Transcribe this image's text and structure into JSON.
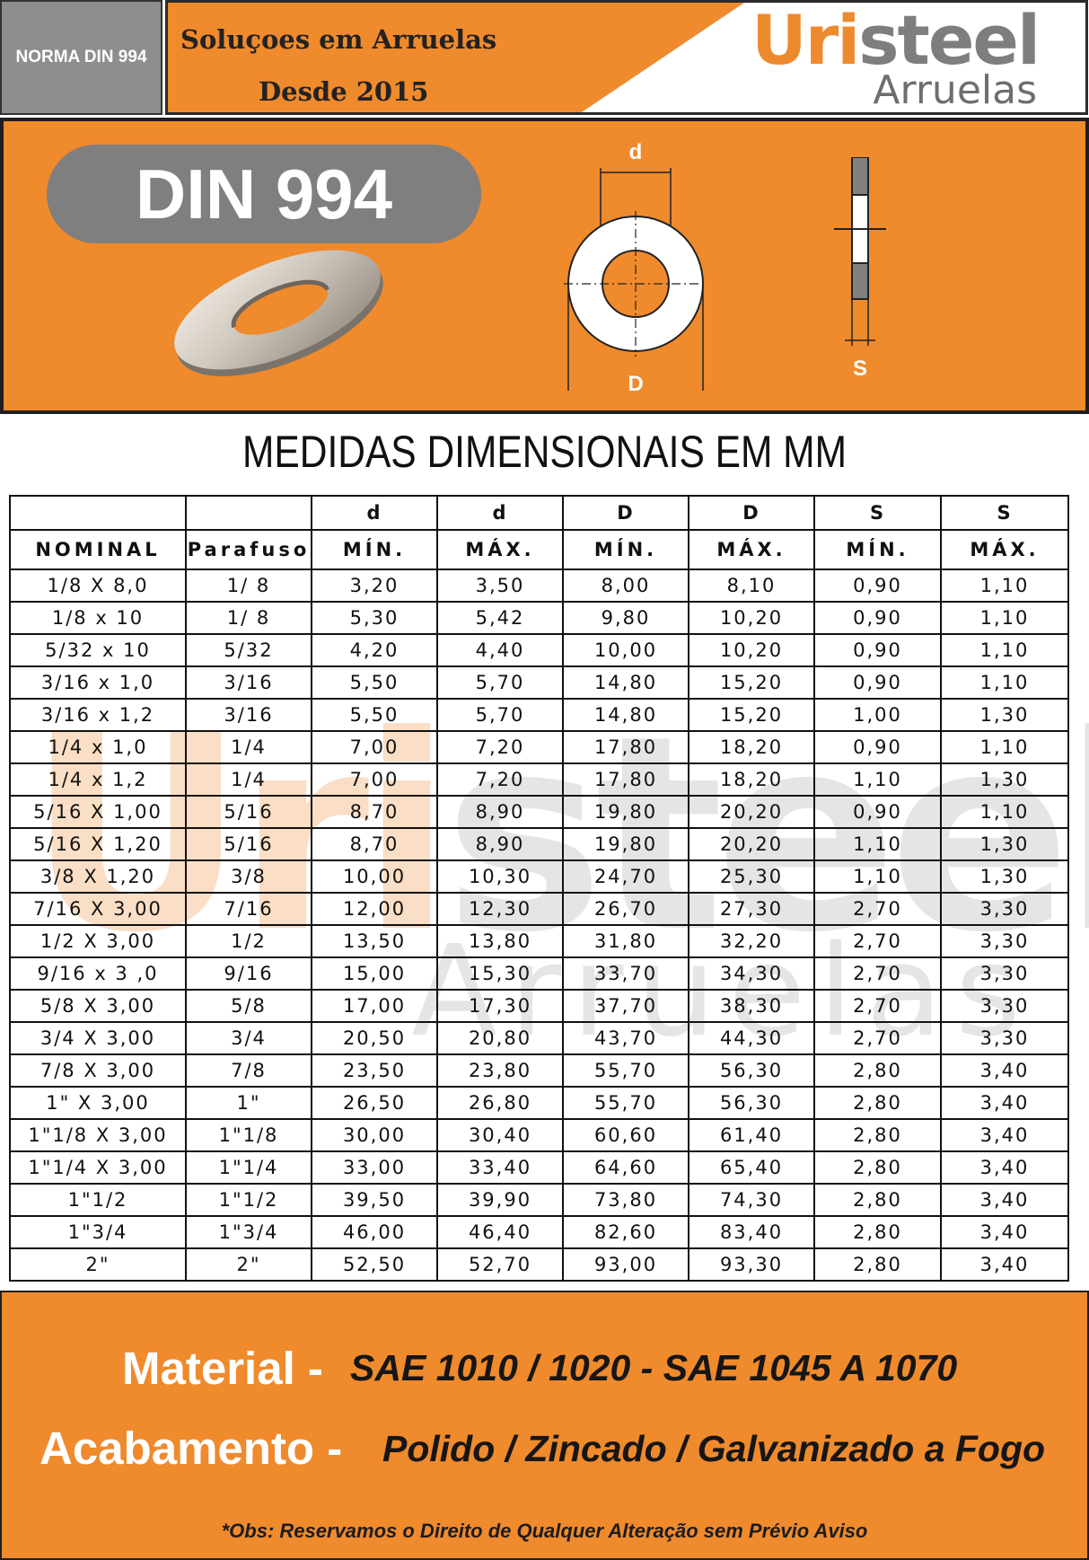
{
  "header": {
    "norma_label": "NORMA DIN 994",
    "slogan_line1": "Soluçoes em Arruelas",
    "slogan_line2": "Desde 2015",
    "logo_prefix": "Uri",
    "logo_suffix": "steel",
    "logo_sub": "Arruelas"
  },
  "banner": {
    "title": "DIN 994",
    "dim_d": "d",
    "dim_D": "D",
    "dim_S": "S"
  },
  "table": {
    "title": "MEDIDAS DIMENSIONAIS EM MM",
    "header_row1": [
      "",
      "",
      "d",
      "d",
      "D",
      "D",
      "S",
      "S"
    ],
    "header_row2": [
      "NOMINAL",
      "Parafuso",
      "MÍN.",
      "MÁX.",
      "MÍN.",
      "MÁX.",
      "MÍN.",
      "MÁX."
    ],
    "rows": [
      [
        "1/8 X 8,0",
        "1/ 8",
        "3,20",
        "3,50",
        "8,00",
        "8,10",
        "0,90",
        "1,10"
      ],
      [
        "1/8 x 10",
        "1/ 8",
        "5,30",
        "5,42",
        "9,80",
        "10,20",
        "0,90",
        "1,10"
      ],
      [
        "5/32 x 10",
        "5/32",
        "4,20",
        "4,40",
        "10,00",
        "10,20",
        "0,90",
        "1,10"
      ],
      [
        "3/16 x 1,0",
        "3/16",
        "5,50",
        "5,70",
        "14,80",
        "15,20",
        "0,90",
        "1,10"
      ],
      [
        "3/16 x 1,2",
        "3/16",
        "5,50",
        "5,70",
        "14,80",
        "15,20",
        "1,00",
        "1,30"
      ],
      [
        "1/4 x 1,0",
        "1/4",
        "7,00",
        "7,20",
        "17,80",
        "18,20",
        "0,90",
        "1,10"
      ],
      [
        "1/4 x 1,2",
        "1/4",
        "7,00",
        "7,20",
        "17,80",
        "18,20",
        "1,10",
        "1,30"
      ],
      [
        "5/16 X 1,00",
        "5/16",
        "8,70",
        "8,90",
        "19,80",
        "20,20",
        "0,90",
        "1,10"
      ],
      [
        "5/16 X 1,20",
        "5/16",
        "8,70",
        "8,90",
        "19,80",
        "20,20",
        "1,10",
        "1,30"
      ],
      [
        "3/8 X 1,20",
        "3/8",
        "10,00",
        "10,30",
        "24,70",
        "25,30",
        "1,10",
        "1,30"
      ],
      [
        "7/16 X 3,00",
        "7/16",
        "12,00",
        "12,30",
        "26,70",
        "27,30",
        "2,70",
        "3,30"
      ],
      [
        "1/2 X 3,00",
        "1/2",
        "13,50",
        "13,80",
        "31,80",
        "32,20",
        "2,70",
        "3,30"
      ],
      [
        "9/16 x 3 ,0",
        "9/16",
        "15,00",
        "15,30",
        "33,70",
        "34,30",
        "2,70",
        "3,30"
      ],
      [
        "5/8 X 3,00",
        "5/8",
        "17,00",
        "17,30",
        "37,70",
        "38,30",
        "2,70",
        "3,30"
      ],
      [
        "3/4 X 3,00",
        "3/4",
        "20,50",
        "20,80",
        "43,70",
        "44,30",
        "2,70",
        "3,30"
      ],
      [
        "7/8 X 3,00",
        "7/8",
        "23,50",
        "23,80",
        "55,70",
        "56,30",
        "2,80",
        "3,40"
      ],
      [
        "1\" X 3,00",
        "1\"",
        "26,50",
        "26,80",
        "55,70",
        "56,30",
        "2,80",
        "3,40"
      ],
      [
        "1\"1/8 X 3,00",
        "1\"1/8",
        "30,00",
        "30,40",
        "60,60",
        "61,40",
        "2,80",
        "3,40"
      ],
      [
        "1\"1/4 X 3,00",
        "1\"1/4",
        "33,00",
        "33,40",
        "64,60",
        "65,40",
        "2,80",
        "3,40"
      ],
      [
        "1\"1/2",
        "1\"1/2",
        "39,50",
        "39,90",
        "73,80",
        "74,30",
        "2,80",
        "3,40"
      ],
      [
        "1\"3/4",
        "1\"3/4",
        "46,00",
        "46,40",
        "82,60",
        "83,40",
        "2,80",
        "3,40"
      ],
      [
        "2\"",
        "2\"",
        "52,50",
        "52,70",
        "93,00",
        "93,30",
        "2,80",
        "3,40"
      ]
    ]
  },
  "footer": {
    "material_label": "Material -",
    "material_value": "SAE 1010 / 1020 - SAE 1045 A 1070",
    "acabamento_label": "Acabamento -",
    "acabamento_value": "Polido / Zincado / Galvanizado a Fogo",
    "obs": "*Obs: Reservamos o Direito de Qualquer Alteração sem Prévio Aviso"
  },
  "colors": {
    "orange": "#ef8a2d",
    "gray": "#7f7f7f",
    "dark": "#1f1f1f"
  }
}
